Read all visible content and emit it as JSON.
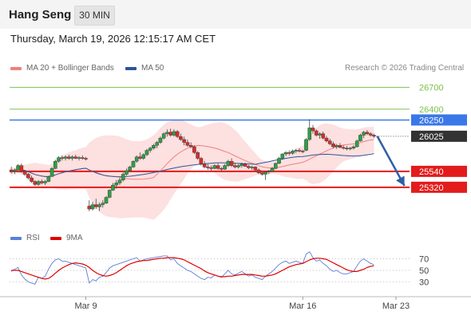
{
  "header": {
    "instrument": "Hang Seng",
    "interval": "30 MIN"
  },
  "datetime": "Thursday, March 19, 2026 12:15:17 AM CET",
  "legend": {
    "ma20": {
      "label": "MA 20 + Bollinger Bands",
      "color": "#f08080"
    },
    "ma50": {
      "label": "MA 50",
      "color": "#2f5597"
    }
  },
  "copyright": "Research © 2026 Trading Central",
  "rsi_legend": {
    "rsi": {
      "label": "RSI",
      "color": "#5b7fd6"
    },
    "ma9": {
      "label": "9MA",
      "color": "#e00000"
    }
  },
  "chart_data": [
    {
      "type": "candlestick",
      "title": "",
      "y_scale": {
        "min": 24800,
        "max": 26850
      },
      "price_levels": [
        {
          "label": "26700",
          "value": 26700,
          "kind": "resistance",
          "color": "#7cc24a",
          "label_bg": "",
          "label_color": "#7cc24a"
        },
        {
          "label": "26400",
          "value": 26400,
          "kind": "resistance",
          "color": "#7cc24a",
          "label_bg": "",
          "label_color": "#7cc24a"
        },
        {
          "label": "26250",
          "value": 26250,
          "kind": "pivot",
          "color": "#3b78e7",
          "label_bg": "#3b78e7",
          "label_color": "#ffffff"
        },
        {
          "label": "26025",
          "value": 26025,
          "kind": "last",
          "color": "#333333",
          "label_bg": "#333333",
          "label_color": "#ffffff"
        },
        {
          "label": "25540",
          "value": 25540,
          "kind": "support",
          "color": "#e31b1b",
          "label_bg": "#e31b1b",
          "label_color": "#ffffff"
        },
        {
          "label": "25320",
          "value": 25320,
          "kind": "support",
          "color": "#e31b1b",
          "label_bg": "#e31b1b",
          "label_color": "#ffffff"
        }
      ],
      "x_ticks": [
        "Mar 9",
        "Mar 16",
        "Mar 23"
      ],
      "ohlc": [
        [
          25560,
          25600,
          25510,
          25540
        ],
        [
          25540,
          25580,
          25500,
          25560
        ],
        [
          25560,
          25640,
          25550,
          25620
        ],
        [
          25620,
          25650,
          25520,
          25540
        ],
        [
          25540,
          25560,
          25480,
          25500
        ],
        [
          25500,
          25520,
          25430,
          25450
        ],
        [
          25450,
          25480,
          25380,
          25400
        ],
        [
          25400,
          25420,
          25340,
          25360
        ],
        [
          25360,
          25420,
          25340,
          25400
        ],
        [
          25400,
          25430,
          25360,
          25380
        ],
        [
          25380,
          25420,
          25350,
          25400
        ],
        [
          25400,
          25480,
          25390,
          25470
        ],
        [
          25470,
          25600,
          25460,
          25580
        ],
        [
          25580,
          25700,
          25570,
          25680
        ],
        [
          25680,
          25750,
          25660,
          25730
        ],
        [
          25730,
          25760,
          25690,
          25720
        ],
        [
          25720,
          25760,
          25690,
          25740
        ],
        [
          25740,
          25770,
          25700,
          25720
        ],
        [
          25720,
          25760,
          25690,
          25740
        ],
        [
          25740,
          25770,
          25710,
          25720
        ],
        [
          25720,
          25750,
          25690,
          25730
        ],
        [
          25730,
          25760,
          25700,
          25720
        ],
        [
          25720,
          25740,
          25690,
          25710
        ],
        [
          25060,
          25140,
          24990,
          25020
        ],
        [
          25020,
          25120,
          25000,
          25080
        ],
        [
          25080,
          25160,
          25020,
          25050
        ],
        [
          25050,
          25110,
          24990,
          25080
        ],
        [
          25080,
          25140,
          25040,
          25100
        ],
        [
          25100,
          25200,
          25090,
          25180
        ],
        [
          25180,
          25290,
          25170,
          25280
        ],
        [
          25280,
          25380,
          25270,
          25350
        ],
        [
          25350,
          25420,
          25300,
          25380
        ],
        [
          25380,
          25450,
          25350,
          25420
        ],
        [
          25420,
          25530,
          25400,
          25500
        ],
        [
          25500,
          25580,
          25480,
          25550
        ],
        [
          25550,
          25620,
          25530,
          25600
        ],
        [
          25600,
          25690,
          25590,
          25680
        ],
        [
          25680,
          25760,
          25660,
          25740
        ],
        [
          25740,
          25800,
          25700,
          25720
        ],
        [
          25720,
          25790,
          25700,
          25770
        ],
        [
          25770,
          25850,
          25750,
          25830
        ],
        [
          25830,
          25880,
          25800,
          25860
        ],
        [
          25860,
          25920,
          25840,
          25900
        ],
        [
          25900,
          25960,
          25860,
          25940
        ],
        [
          25940,
          26020,
          25920,
          26000
        ],
        [
          26000,
          26080,
          25980,
          26060
        ],
        [
          26060,
          26120,
          26020,
          26080
        ],
        [
          26080,
          26130,
          26020,
          26040
        ],
        [
          26040,
          26120,
          26020,
          26090
        ],
        [
          26090,
          26110,
          26000,
          26020
        ],
        [
          26020,
          26060,
          25960,
          25980
        ],
        [
          25980,
          26020,
          25900,
          25940
        ],
        [
          25940,
          25980,
          25880,
          25900
        ],
        [
          25900,
          25940,
          25860,
          25880
        ],
        [
          25880,
          25900,
          25780,
          25800
        ],
        [
          25800,
          25820,
          25700,
          25720
        ],
        [
          25720,
          25740,
          25620,
          25640
        ],
        [
          25640,
          25680,
          25580,
          25600
        ],
        [
          25600,
          25640,
          25560,
          25590
        ],
        [
          25590,
          25620,
          25550,
          25580
        ],
        [
          25580,
          25640,
          25570,
          25620
        ],
        [
          25620,
          25650,
          25560,
          25580
        ],
        [
          25580,
          25600,
          25540,
          25570
        ],
        [
          25570,
          25640,
          25560,
          25620
        ],
        [
          25620,
          25700,
          25600,
          25680
        ],
        [
          25680,
          25720,
          25600,
          25620
        ],
        [
          25620,
          25660,
          25580,
          25600
        ],
        [
          25600,
          25640,
          25580,
          25620
        ],
        [
          25620,
          25660,
          25590,
          25640
        ],
        [
          25640,
          25660,
          25600,
          25610
        ],
        [
          25610,
          25630,
          25570,
          25590
        ],
        [
          25590,
          25620,
          25560,
          25600
        ],
        [
          25600,
          25610,
          25540,
          25560
        ],
        [
          25560,
          25580,
          25500,
          25520
        ],
        [
          25520,
          25550,
          25480,
          25500
        ],
        [
          25500,
          25520,
          25420,
          25530
        ],
        [
          25530,
          25560,
          25500,
          25540
        ],
        [
          25540,
          25600,
          25530,
          25580
        ],
        [
          25580,
          25660,
          25570,
          25650
        ],
        [
          25650,
          25740,
          25640,
          25720
        ],
        [
          25720,
          25790,
          25700,
          25780
        ],
        [
          25780,
          25820,
          25750,
          25800
        ],
        [
          25800,
          25830,
          25760,
          25790
        ],
        [
          25790,
          25840,
          25770,
          25820
        ],
        [
          25820,
          25850,
          25790,
          25830
        ],
        [
          25830,
          25860,
          25800,
          25820
        ],
        [
          25820,
          25840,
          25790,
          25810
        ],
        [
          25830,
          26000,
          25820,
          25980
        ],
        [
          25980,
          26260,
          25960,
          26140
        ],
        [
          26140,
          26180,
          26060,
          26100
        ],
        [
          26100,
          26120,
          26020,
          26040
        ],
        [
          26040,
          26080,
          25990,
          26060
        ],
        [
          26060,
          26090,
          25980,
          26000
        ],
        [
          26000,
          26030,
          25940,
          25960
        ],
        [
          25960,
          25990,
          25900,
          25920
        ],
        [
          25920,
          25950,
          25860,
          25880
        ],
        [
          25880,
          25920,
          25850,
          25900
        ],
        [
          25900,
          25930,
          25860,
          25870
        ],
        [
          25870,
          25900,
          25840,
          25860
        ],
        [
          25860,
          25890,
          25830,
          25850
        ],
        [
          25850,
          25880,
          25830,
          25860
        ],
        [
          25860,
          25900,
          25840,
          25880
        ],
        [
          25880,
          25980,
          25870,
          25960
        ],
        [
          25960,
          26060,
          25950,
          26040
        ],
        [
          26040,
          26100,
          26000,
          26080
        ],
        [
          26080,
          26110,
          26040,
          26060
        ],
        [
          26060,
          26080,
          26020,
          26040
        ],
        [
          26040,
          26060,
          26000,
          26025
        ]
      ],
      "projection": {
        "from_bar": 108,
        "from_value": 26025,
        "to_bar": 116,
        "to_value": 25340
      }
    },
    {
      "type": "line",
      "title": "",
      "y_scale": {
        "min": 10,
        "max": 90
      },
      "y_ticks": [
        70,
        50,
        30
      ],
      "reference_lines": [
        70,
        50,
        30
      ],
      "series": [
        {
          "name": "RSI",
          "color": "#5b7fd6",
          "values": [
            48,
            52,
            55,
            42,
            35,
            30,
            28,
            26,
            38,
            36,
            40,
            52,
            62,
            68,
            70,
            66,
            66,
            64,
            62,
            60,
            58,
            56,
            54,
            28,
            34,
            32,
            38,
            40,
            46,
            54,
            58,
            60,
            62,
            64,
            66,
            68,
            70,
            72,
            66,
            68,
            70,
            71,
            72,
            73,
            74,
            75,
            75,
            68,
            70,
            62,
            58,
            54,
            50,
            48,
            44,
            40,
            36,
            34,
            38,
            37,
            42,
            40,
            38,
            44,
            50,
            44,
            42,
            45,
            48,
            44,
            40,
            42,
            38,
            36,
            34,
            40,
            44,
            48,
            54,
            60,
            64,
            66,
            62,
            64,
            66,
            64,
            62,
            78,
            82,
            72,
            66,
            68,
            62,
            58,
            52,
            48,
            50,
            46,
            44,
            44,
            46,
            48,
            58,
            66,
            70,
            66,
            62,
            60
          ]
        },
        {
          "name": "9MA",
          "color": "#e00000",
          "values": [
            50,
            50,
            50,
            48,
            46,
            44,
            42,
            40,
            38,
            36,
            35,
            36,
            40,
            45,
            50,
            54,
            57,
            60,
            62,
            63,
            62,
            61,
            59,
            55,
            50,
            46,
            43,
            41,
            40,
            41,
            43,
            46,
            50,
            54,
            58,
            61,
            63,
            65,
            66,
            67,
            67,
            68,
            69,
            70,
            71,
            71,
            72,
            72,
            72,
            71,
            70,
            68,
            65,
            62,
            59,
            56,
            53,
            49,
            46,
            44,
            42,
            40,
            39,
            39,
            40,
            40,
            41,
            42,
            43,
            43,
            43,
            43,
            42,
            41,
            40,
            40,
            41,
            42,
            44,
            47,
            50,
            53,
            56,
            58,
            60,
            61,
            62,
            65,
            68,
            70,
            71,
            71,
            70,
            69,
            66,
            63,
            60,
            57,
            54,
            51,
            49,
            48,
            48,
            50,
            52,
            55,
            57,
            58
          ]
        }
      ]
    }
  ]
}
